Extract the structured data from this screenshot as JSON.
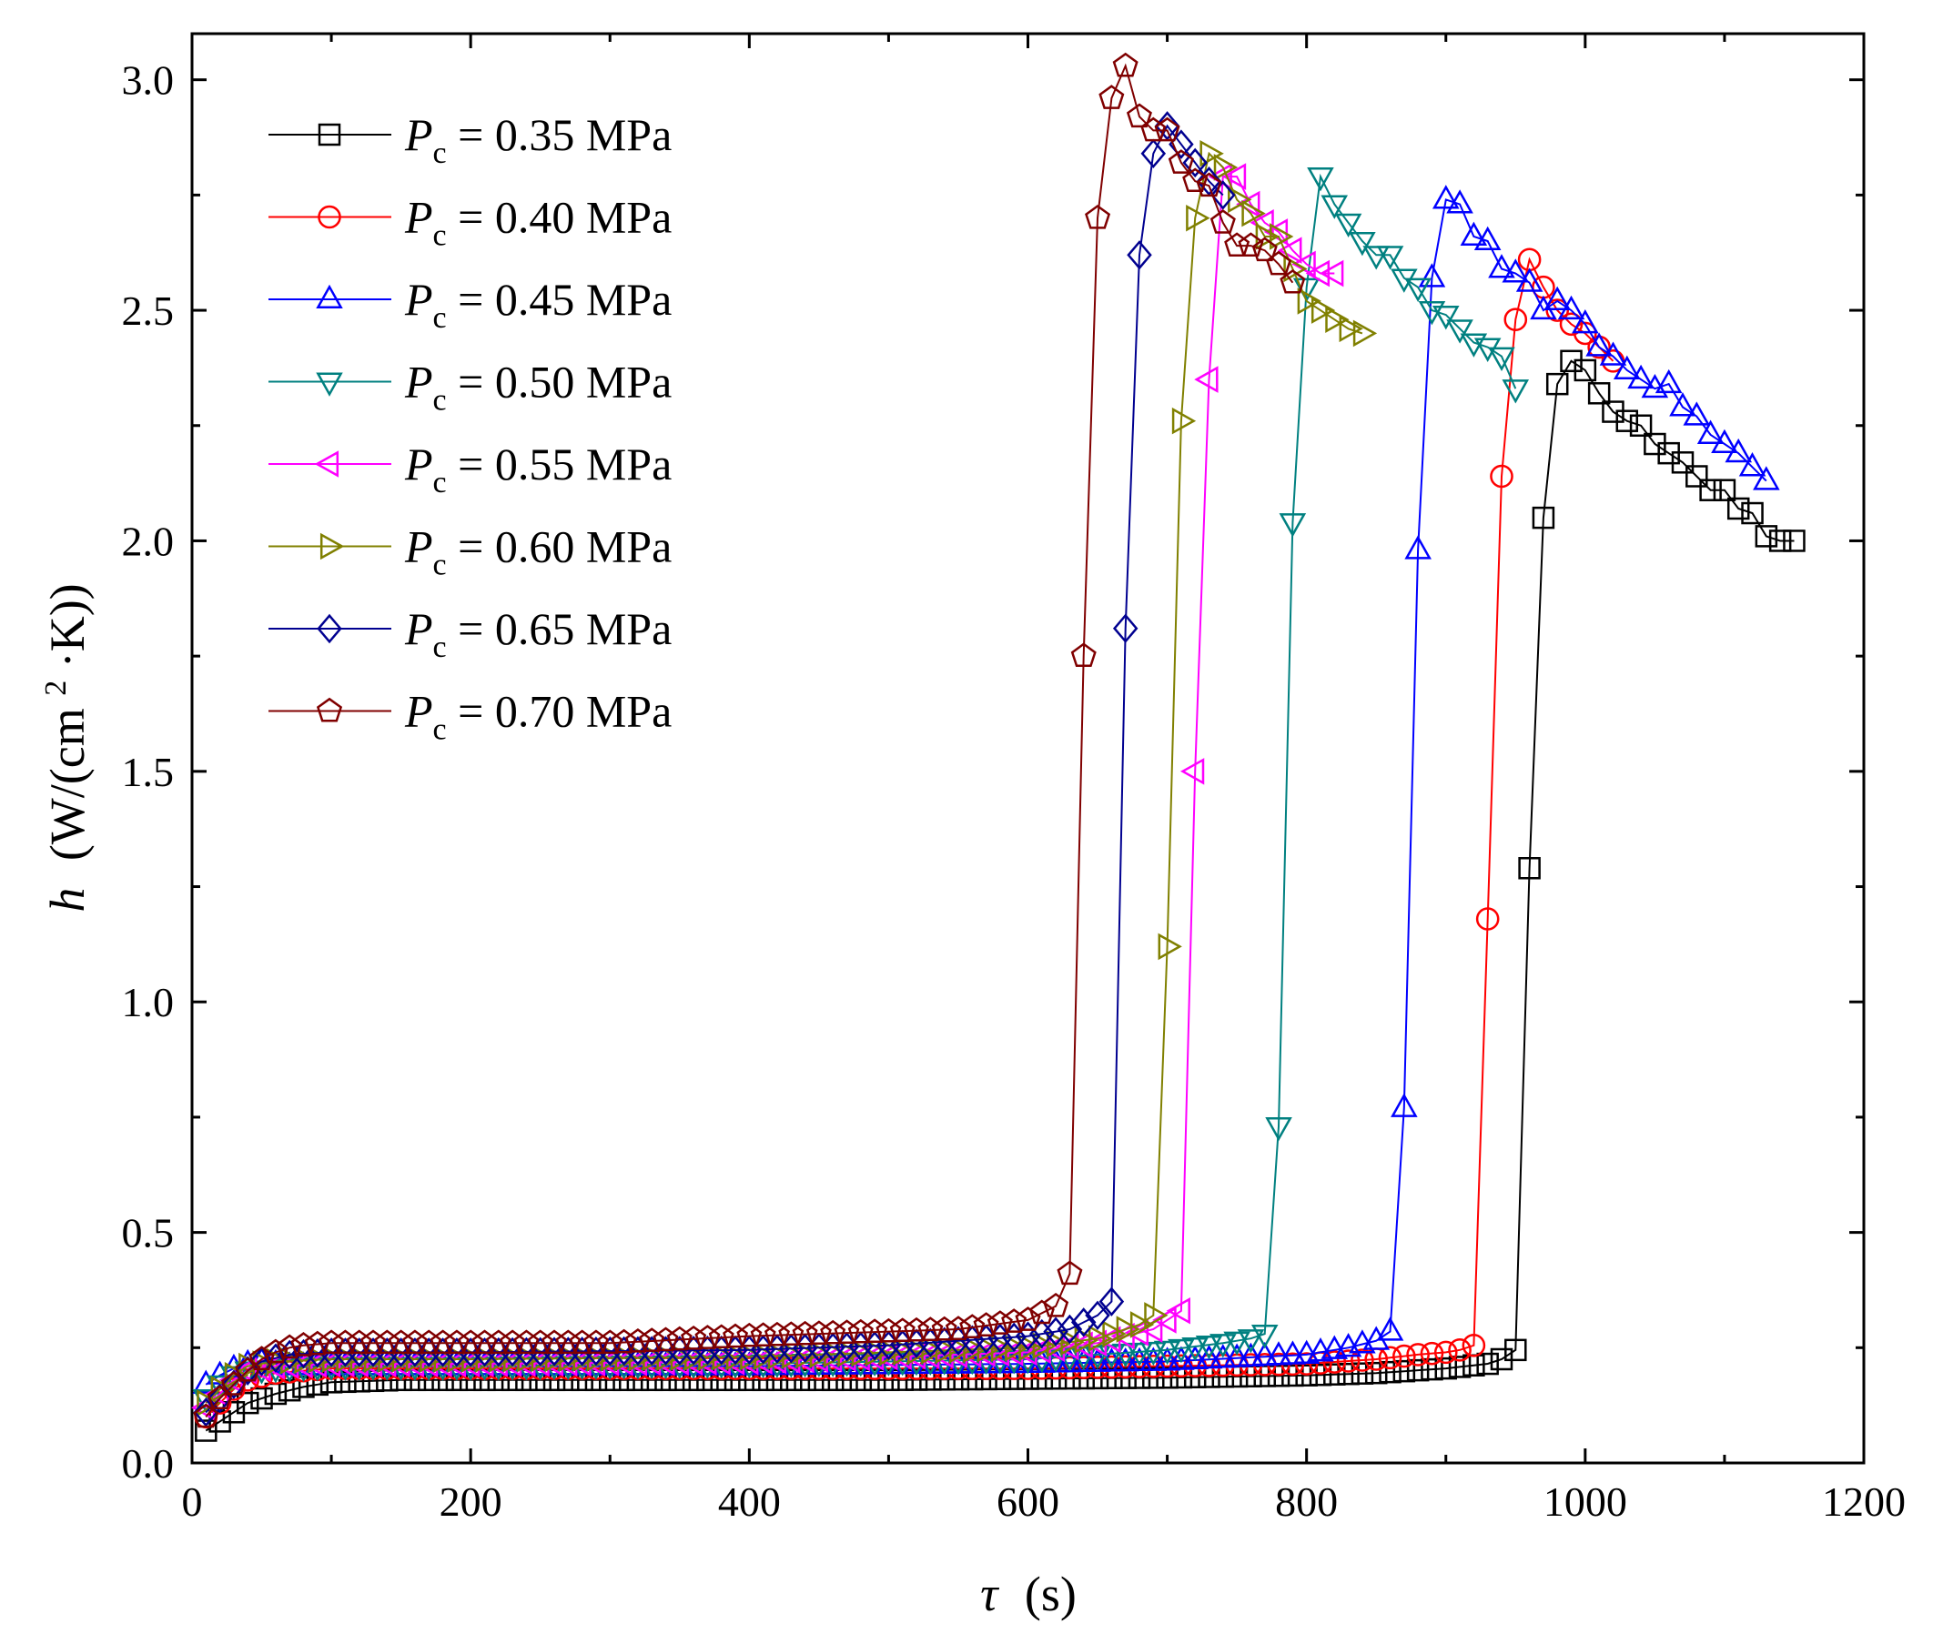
{
  "chart_data": {
    "type": "line",
    "xlabel_symbol": "τ",
    "xlabel_unit": "(s)",
    "ylabel_symbol": "h",
    "ylabel_unit_pre": "(W/(cm",
    "ylabel_unit_sup": "2",
    "ylabel_unit_post": "·K))",
    "xlim": [
      0,
      1200
    ],
    "ylim": [
      0,
      3.1
    ],
    "xticks": [
      0,
      200,
      400,
      600,
      800,
      1000,
      1200
    ],
    "xtick_labels": [
      "0",
      "200",
      "400",
      "600",
      "800",
      "1000",
      "1200"
    ],
    "yticks": [
      0,
      0.5,
      1.0,
      1.5,
      2.0,
      2.5,
      3.0
    ],
    "ytick_labels": [
      "0.0",
      "0.5",
      "1.0",
      "1.5",
      "2.0",
      "2.5",
      "3.0"
    ],
    "legend_position": "top-left",
    "series": [
      {
        "name": "P_c = 0.35 MPa",
        "sym": "P",
        "sub": "c",
        "value_text": " = 0.35 MPa",
        "color": "#000000",
        "marker": "square",
        "base": [
          [
            10,
            0.07
          ],
          [
            20,
            0.09
          ],
          [
            30,
            0.11
          ],
          [
            40,
            0.13
          ],
          [
            60,
            0.15
          ],
          [
            80,
            0.165
          ],
          [
            100,
            0.175
          ],
          [
            150,
            0.18
          ],
          [
            300,
            0.18
          ],
          [
            500,
            0.18
          ],
          [
            700,
            0.185
          ],
          [
            800,
            0.19
          ],
          [
            850,
            0.195
          ],
          [
            900,
            0.205
          ],
          [
            930,
            0.215
          ],
          [
            940,
            0.225
          ],
          [
            950,
            0.245
          ]
        ],
        "peak": [
          [
            950,
            0.245
          ],
          [
            960,
            1.29
          ],
          [
            970,
            2.05
          ],
          [
            980,
            2.34
          ],
          [
            990,
            2.39
          ],
          [
            1000,
            2.37
          ],
          [
            1010,
            2.32
          ],
          [
            1020,
            2.28
          ],
          [
            1030,
            2.26
          ],
          [
            1040,
            2.25
          ],
          [
            1050,
            2.21
          ],
          [
            1060,
            2.19
          ],
          [
            1070,
            2.17
          ],
          [
            1080,
            2.14
          ],
          [
            1090,
            2.11
          ],
          [
            1100,
            2.11
          ],
          [
            1110,
            2.07
          ],
          [
            1120,
            2.06
          ],
          [
            1130,
            2.01
          ],
          [
            1140,
            2.0
          ],
          [
            1150,
            2.0
          ]
        ]
      },
      {
        "name": "P_c = 0.40 MPa",
        "sym": "P",
        "sub": "c",
        "value_text": " = 0.40 MPa",
        "color": "#ff0000",
        "marker": "circle",
        "base": [
          [
            10,
            0.1
          ],
          [
            20,
            0.13
          ],
          [
            30,
            0.16
          ],
          [
            40,
            0.18
          ],
          [
            60,
            0.195
          ],
          [
            80,
            0.2
          ],
          [
            100,
            0.205
          ],
          [
            200,
            0.205
          ],
          [
            400,
            0.205
          ],
          [
            600,
            0.205
          ],
          [
            700,
            0.21
          ],
          [
            800,
            0.215
          ],
          [
            850,
            0.225
          ],
          [
            880,
            0.235
          ],
          [
            900,
            0.24
          ],
          [
            910,
            0.245
          ],
          [
            920,
            0.255
          ]
        ],
        "peak": [
          [
            920,
            0.255
          ],
          [
            930,
            1.18
          ],
          [
            940,
            2.14
          ],
          [
            950,
            2.48
          ],
          [
            960,
            2.61
          ],
          [
            970,
            2.55
          ],
          [
            980,
            2.5
          ],
          [
            990,
            2.47
          ],
          [
            1000,
            2.45
          ],
          [
            1010,
            2.42
          ],
          [
            1020,
            2.39
          ]
        ]
      },
      {
        "name": "P_c = 0.45 MPa",
        "sym": "P",
        "sub": "c",
        "value_text": " = 0.45 MPa",
        "color": "#0000ff",
        "marker": "triangle-up",
        "base": [
          [
            10,
            0.17
          ],
          [
            20,
            0.19
          ],
          [
            30,
            0.205
          ],
          [
            40,
            0.215
          ],
          [
            50,
            0.22
          ],
          [
            70,
            0.21
          ],
          [
            100,
            0.21
          ],
          [
            200,
            0.21
          ],
          [
            400,
            0.21
          ],
          [
            600,
            0.215
          ],
          [
            700,
            0.22
          ],
          [
            800,
            0.235
          ],
          [
            830,
            0.25
          ],
          [
            850,
            0.265
          ],
          [
            860,
            0.285
          ]
        ],
        "peak": [
          [
            860,
            0.285
          ],
          [
            870,
            0.77
          ],
          [
            880,
            1.98
          ],
          [
            890,
            2.57
          ],
          [
            900,
            2.74
          ],
          [
            910,
            2.73
          ],
          [
            920,
            2.66
          ],
          [
            930,
            2.65
          ],
          [
            940,
            2.59
          ],
          [
            950,
            2.58
          ],
          [
            960,
            2.56
          ],
          [
            970,
            2.5
          ],
          [
            980,
            2.52
          ],
          [
            990,
            2.5
          ],
          [
            1000,
            2.47
          ],
          [
            1010,
            2.42
          ],
          [
            1020,
            2.4
          ],
          [
            1030,
            2.37
          ],
          [
            1040,
            2.35
          ],
          [
            1050,
            2.33
          ],
          [
            1060,
            2.34
          ],
          [
            1070,
            2.29
          ],
          [
            1080,
            2.27
          ],
          [
            1090,
            2.23
          ],
          [
            1100,
            2.21
          ],
          [
            1110,
            2.19
          ],
          [
            1120,
            2.16
          ],
          [
            1130,
            2.13
          ]
        ]
      },
      {
        "name": "P_c = 0.50 MPa",
        "sym": "P",
        "sub": "c",
        "value_text": " = 0.50 MPa",
        "color": "#008080",
        "marker": "triangle-down",
        "base": [
          [
            10,
            0.14
          ],
          [
            20,
            0.17
          ],
          [
            30,
            0.19
          ],
          [
            40,
            0.2
          ],
          [
            60,
            0.205
          ],
          [
            100,
            0.21
          ],
          [
            200,
            0.21
          ],
          [
            400,
            0.215
          ],
          [
            600,
            0.225
          ],
          [
            700,
            0.245
          ],
          [
            740,
            0.26
          ],
          [
            760,
            0.27
          ],
          [
            770,
            0.28
          ]
        ],
        "peak": [
          [
            770,
            0.28
          ],
          [
            780,
            0.73
          ],
          [
            790,
            2.04
          ],
          [
            800,
            2.55
          ],
          [
            810,
            2.79
          ],
          [
            820,
            2.73
          ],
          [
            830,
            2.69
          ],
          [
            840,
            2.65
          ],
          [
            850,
            2.62
          ],
          [
            860,
            2.62
          ],
          [
            870,
            2.57
          ],
          [
            880,
            2.55
          ],
          [
            890,
            2.5
          ],
          [
            900,
            2.49
          ],
          [
            910,
            2.46
          ],
          [
            920,
            2.43
          ],
          [
            930,
            2.42
          ],
          [
            940,
            2.4
          ],
          [
            950,
            2.33
          ]
        ]
      },
      {
        "name": "P_c = 0.55 MPa",
        "sym": "P",
        "sub": "c",
        "value_text": " = 0.55 MPa",
        "color": "#ff00ff",
        "marker": "triangle-left",
        "base": [
          [
            10,
            0.12
          ],
          [
            20,
            0.15
          ],
          [
            30,
            0.18
          ],
          [
            40,
            0.2
          ],
          [
            60,
            0.21
          ],
          [
            100,
            0.215
          ],
          [
            200,
            0.215
          ],
          [
            400,
            0.22
          ],
          [
            600,
            0.24
          ],
          [
            650,
            0.26
          ],
          [
            690,
            0.29
          ],
          [
            700,
            0.31
          ],
          [
            710,
            0.33
          ]
        ],
        "peak": [
          [
            710,
            0.33
          ],
          [
            720,
            1.5
          ],
          [
            730,
            2.35
          ],
          [
            740,
            2.79
          ],
          [
            750,
            2.79
          ],
          [
            760,
            2.73
          ],
          [
            770,
            2.69
          ],
          [
            780,
            2.67
          ],
          [
            790,
            2.63
          ],
          [
            800,
            2.6
          ],
          [
            810,
            2.58
          ],
          [
            820,
            2.58
          ]
        ]
      },
      {
        "name": "P_c = 0.60 MPa",
        "sym": "P",
        "sub": "c",
        "value_text": " = 0.60 MPa",
        "color": "#808000",
        "marker": "triangle-right",
        "base": [
          [
            10,
            0.13
          ],
          [
            20,
            0.16
          ],
          [
            30,
            0.19
          ],
          [
            40,
            0.21
          ],
          [
            60,
            0.22
          ],
          [
            100,
            0.225
          ],
          [
            200,
            0.225
          ],
          [
            400,
            0.23
          ],
          [
            600,
            0.25
          ],
          [
            650,
            0.27
          ],
          [
            680,
            0.3
          ],
          [
            690,
            0.32
          ]
        ],
        "peak": [
          [
            690,
            0.32
          ],
          [
            700,
            1.12
          ],
          [
            710,
            2.26
          ],
          [
            720,
            2.7
          ],
          [
            730,
            2.84
          ],
          [
            740,
            2.81
          ],
          [
            750,
            2.74
          ],
          [
            760,
            2.71
          ],
          [
            770,
            2.66
          ],
          [
            780,
            2.66
          ],
          [
            790,
            2.59
          ],
          [
            800,
            2.52
          ],
          [
            810,
            2.5
          ],
          [
            820,
            2.48
          ],
          [
            830,
            2.46
          ],
          [
            840,
            2.45
          ]
        ]
      },
      {
        "name": "P_c = 0.65 MPa",
        "sym": "P",
        "sub": "c",
        "value_text": " = 0.65 MPa",
        "color": "#000090",
        "marker": "diamond",
        "base": [
          [
            10,
            0.11
          ],
          [
            20,
            0.14
          ],
          [
            30,
            0.17
          ],
          [
            40,
            0.2
          ],
          [
            50,
            0.22
          ],
          [
            70,
            0.235
          ],
          [
            100,
            0.24
          ],
          [
            200,
            0.24
          ],
          [
            400,
            0.245
          ],
          [
            500,
            0.255
          ],
          [
            600,
            0.275
          ],
          [
            630,
            0.29
          ],
          [
            650,
            0.32
          ],
          [
            660,
            0.35
          ]
        ],
        "peak": [
          [
            660,
            0.35
          ],
          [
            670,
            1.81
          ],
          [
            680,
            2.62
          ],
          [
            690,
            2.84
          ],
          [
            700,
            2.9
          ],
          [
            710,
            2.86
          ],
          [
            720,
            2.82
          ],
          [
            730,
            2.78
          ],
          [
            740,
            2.75
          ]
        ]
      },
      {
        "name": "P_c = 0.70 MPa",
        "sym": "P",
        "sub": "c",
        "value_text": " = 0.70 MPa",
        "color": "#800000",
        "marker": "pentagon",
        "base": [
          [
            10,
            0.1
          ],
          [
            20,
            0.14
          ],
          [
            30,
            0.17
          ],
          [
            40,
            0.2
          ],
          [
            50,
            0.225
          ],
          [
            60,
            0.24
          ],
          [
            70,
            0.25
          ],
          [
            80,
            0.255
          ],
          [
            100,
            0.26
          ],
          [
            200,
            0.26
          ],
          [
            300,
            0.26
          ],
          [
            400,
            0.275
          ],
          [
            500,
            0.285
          ],
          [
            550,
            0.29
          ],
          [
            600,
            0.31
          ],
          [
            620,
            0.34
          ],
          [
            630,
            0.41
          ]
        ],
        "peak": [
          [
            630,
            0.41
          ],
          [
            640,
            1.75
          ],
          [
            650,
            2.7
          ],
          [
            660,
            2.96
          ],
          [
            670,
            3.03
          ],
          [
            680,
            2.92
          ],
          [
            690,
            2.89
          ],
          [
            700,
            2.89
          ],
          [
            710,
            2.82
          ],
          [
            720,
            2.78
          ],
          [
            730,
            2.77
          ],
          [
            740,
            2.69
          ],
          [
            750,
            2.64
          ],
          [
            760,
            2.64
          ],
          [
            770,
            2.63
          ],
          [
            780,
            2.6
          ],
          [
            790,
            2.56
          ]
        ]
      }
    ]
  }
}
